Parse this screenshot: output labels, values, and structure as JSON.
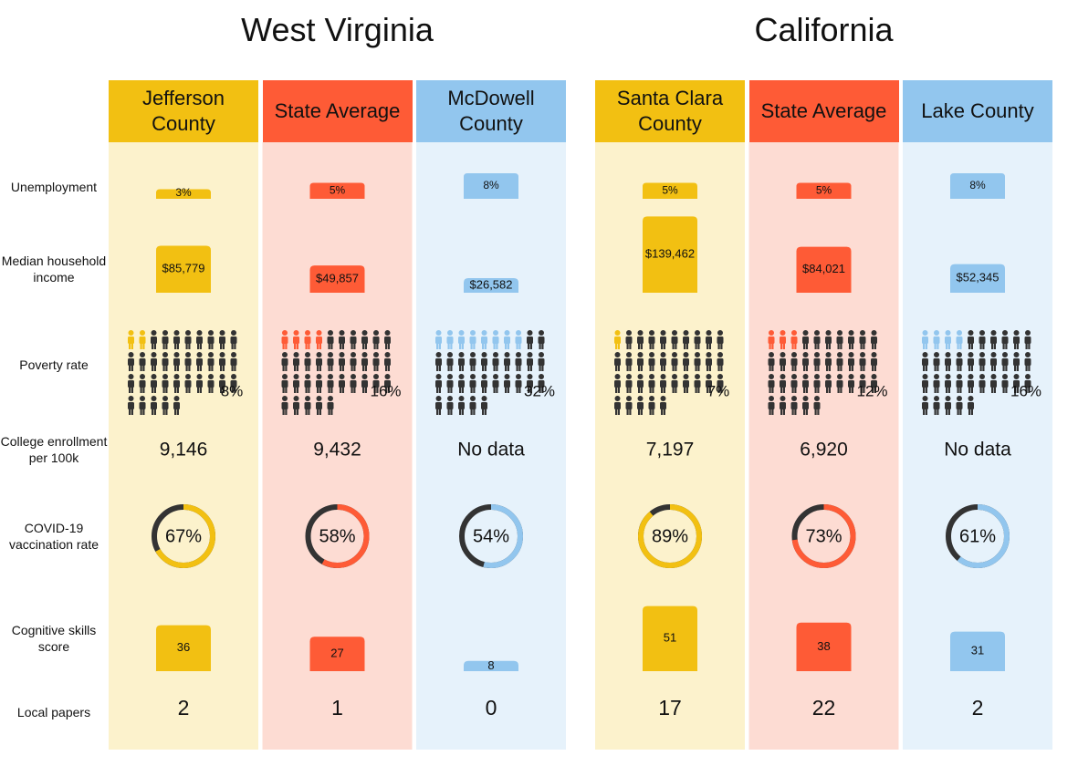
{
  "row_labels": [
    "Unemployment",
    "Median household income",
    "Poverty rate",
    "College enrollment per 100k",
    "COVID-19 vaccination rate",
    "Cognitive skills score",
    "Local papers"
  ],
  "states": [
    {
      "name": "West Virginia",
      "columns": [
        {
          "name": "Jefferson County",
          "color": "#f2c012",
          "background": "#fcf2cc",
          "unemployment": {
            "value": 3,
            "label": "3%"
          },
          "median_income": {
            "value": 85779,
            "label": "$85,779"
          },
          "poverty_rate": {
            "value": 8,
            "label": "8%"
          },
          "college_enrollment": "9,146",
          "vaccination_rate": {
            "value": 67,
            "label": "67%"
          },
          "cognitive_score": 36,
          "local_papers": 2
        },
        {
          "name": "State Average",
          "color": "#fe5b36",
          "background": "#fddcd3",
          "unemployment": {
            "value": 5,
            "label": "5%"
          },
          "median_income": {
            "value": 49857,
            "label": "$49,857"
          },
          "poverty_rate": {
            "value": 16,
            "label": "16%"
          },
          "college_enrollment": "9,432",
          "vaccination_rate": {
            "value": 58,
            "label": "58%"
          },
          "cognitive_score": 27,
          "local_papers": 1
        },
        {
          "name": "McDowell County",
          "color": "#92c6ee",
          "background": "#e6f2fb",
          "unemployment": {
            "value": 8,
            "label": "8%"
          },
          "median_income": {
            "value": 26582,
            "label": "$26,582"
          },
          "poverty_rate": {
            "value": 32,
            "label": "32%"
          },
          "college_enrollment": "No data",
          "vaccination_rate": {
            "value": 54,
            "label": "54%"
          },
          "cognitive_score": 8,
          "local_papers": 0
        }
      ]
    },
    {
      "name": "California",
      "columns": [
        {
          "name": "Santa Clara County",
          "color": "#f2c012",
          "background": "#fcf2cc",
          "unemployment": {
            "value": 5,
            "label": "5%"
          },
          "median_income": {
            "value": 139462,
            "label": "$139,462"
          },
          "poverty_rate": {
            "value": 7,
            "label": "7%"
          },
          "college_enrollment": "7,197",
          "vaccination_rate": {
            "value": 89,
            "label": "89%"
          },
          "cognitive_score": 51,
          "local_papers": 17
        },
        {
          "name": "State Average",
          "color": "#fe5b36",
          "background": "#fddcd3",
          "unemployment": {
            "value": 5,
            "label": "5%"
          },
          "median_income": {
            "value": 84021,
            "label": "$84,021"
          },
          "poverty_rate": {
            "value": 12,
            "label": "12%"
          },
          "college_enrollment": "6,920",
          "vaccination_rate": {
            "value": 73,
            "label": "73%"
          },
          "cognitive_score": 38,
          "local_papers": 22
        },
        {
          "name": "Lake County",
          "color": "#92c6ee",
          "background": "#e6f2fb",
          "unemployment": {
            "value": 8,
            "label": "8%"
          },
          "median_income": {
            "value": 52345,
            "label": "$52,345"
          },
          "poverty_rate": {
            "value": 16,
            "label": "16%"
          },
          "college_enrollment": "No data",
          "vaccination_rate": {
            "value": 61,
            "label": "61%"
          },
          "cognitive_score": 31,
          "local_papers": 2
        }
      ]
    }
  ]
}
